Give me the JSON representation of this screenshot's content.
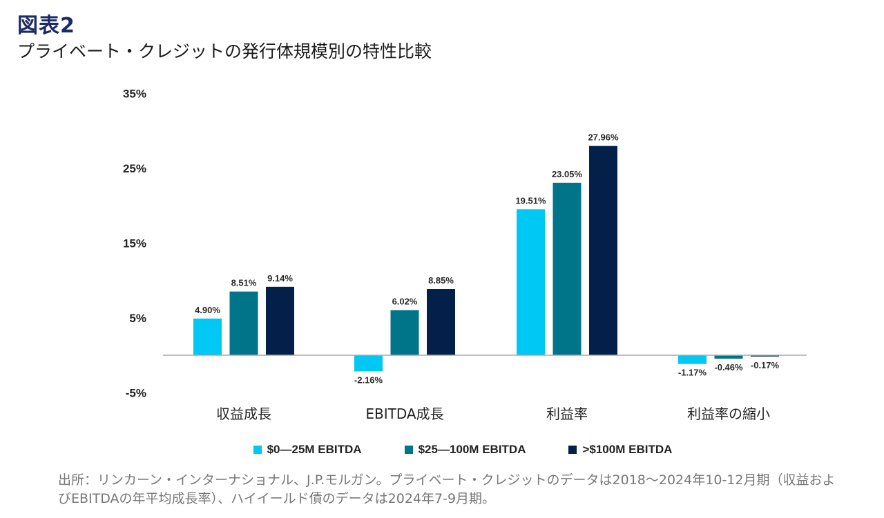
{
  "header": {
    "figure_label": "図表2",
    "title": "プライベート・クレジットの発行体規模別の特性比較"
  },
  "chart_data": {
    "type": "bar",
    "title": "プライベート・クレジットの発行体規模別の特性比較",
    "xlabel": "",
    "ylabel": "",
    "categories": [
      "収益成長",
      "EBITDA成長",
      "利益率",
      "利益率の縮小"
    ],
    "series": [
      {
        "name": "$0—25M EBITDA",
        "color": "#00c8f5",
        "values": [
          4.9,
          -2.16,
          19.51,
          -1.17
        ],
        "labels": [
          "4.90%",
          "-2.16%",
          "19.51%",
          "-1.17%"
        ]
      },
      {
        "name": "$25—100M EBITDA",
        "color": "#007489",
        "values": [
          8.51,
          6.02,
          23.05,
          -0.46
        ],
        "labels": [
          "8.51%",
          "6.02%",
          "23.05%",
          "-0.46%"
        ]
      },
      {
        "name": ">$100M EBITDA",
        "color": "#03204a",
        "values": [
          9.14,
          8.85,
          27.96,
          -0.17
        ],
        "labels": [
          "9.14%",
          "8.85%",
          "27.96%",
          "-0.17%"
        ]
      }
    ],
    "yticks": [
      35,
      25,
      15,
      5,
      -5
    ],
    "ytick_labels": [
      "35%",
      "25%",
      "15%",
      "5%",
      "-5%"
    ],
    "ylim": [
      -5,
      35
    ],
    "grid": false,
    "zero_line": true,
    "legend_position": "bottom"
  },
  "legend": {
    "items": [
      {
        "label": "$0—25M EBITDA",
        "color": "#00c8f5"
      },
      {
        "label": "$25—100M EBITDA",
        "color": "#007489"
      },
      {
        "label": ">$100M EBITDA",
        "color": "#03204a"
      }
    ]
  },
  "footer": {
    "source_line1": "出所：リンカーン・インターナショナル、J.P.モルガン。プライベート・クレジットのデータは2018～2024年10-12月期（収益およ",
    "source_line2": "びEBITDAの年平均成長率）、ハイイールド債のデータは2024年7-9月期。"
  }
}
